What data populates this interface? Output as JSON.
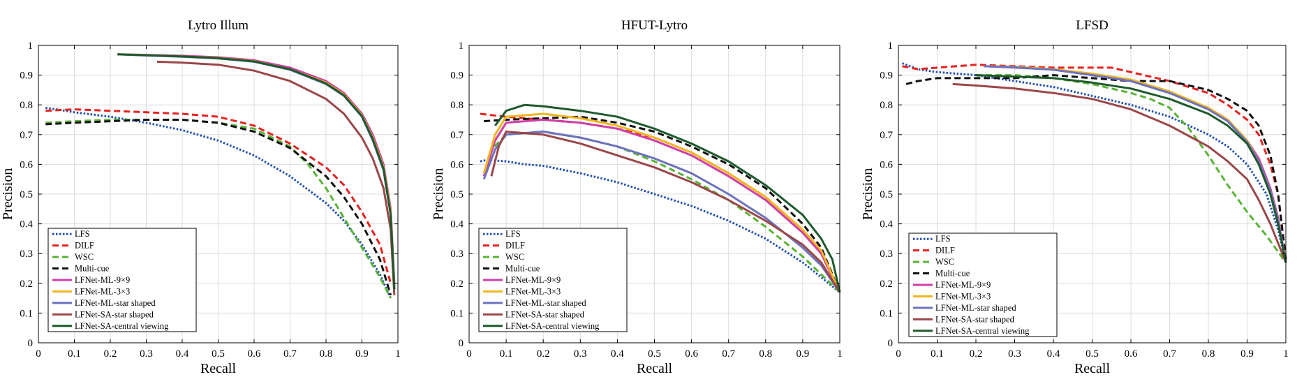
{
  "chart_data": [
    {
      "type": "line",
      "title": "Lytro Illum",
      "xlabel": "Recall",
      "ylabel": "Precision",
      "xlim": [
        0,
        1
      ],
      "ylim": [
        0,
        1
      ],
      "xticks": [
        "0",
        "0.1",
        "0.2",
        "0.3",
        "0.4",
        "0.5",
        "0.6",
        "0.7",
        "0.8",
        "0.9",
        "1"
      ],
      "yticks": [
        "0",
        "0.1",
        "0.2",
        "0.3",
        "0.4",
        "0.5",
        "0.6",
        "0.7",
        "0.8",
        "0.9",
        "1"
      ],
      "grid": true,
      "legend_position": "bottom-left",
      "series": [
        {
          "name": "LFS",
          "color": "#1f4fb4",
          "dash": "dotted",
          "x": [
            0.02,
            0.05,
            0.1,
            0.2,
            0.3,
            0.4,
            0.5,
            0.6,
            0.7,
            0.8,
            0.85,
            0.9,
            0.95,
            0.98
          ],
          "y": [
            0.79,
            0.785,
            0.775,
            0.76,
            0.74,
            0.715,
            0.68,
            0.63,
            0.56,
            0.47,
            0.41,
            0.33,
            0.23,
            0.15
          ]
        },
        {
          "name": "DILF",
          "color": "#e8211e",
          "dash": "dashed",
          "x": [
            0.02,
            0.1,
            0.2,
            0.3,
            0.4,
            0.5,
            0.6,
            0.7,
            0.8,
            0.85,
            0.9,
            0.95,
            0.98
          ],
          "y": [
            0.78,
            0.785,
            0.78,
            0.775,
            0.77,
            0.76,
            0.73,
            0.67,
            0.59,
            0.53,
            0.44,
            0.33,
            0.2
          ]
        },
        {
          "name": "WSC",
          "color": "#59b336",
          "dash": "dashed",
          "x": [
            0.02,
            0.1,
            0.2,
            0.3,
            0.4,
            0.5,
            0.6,
            0.7,
            0.75,
            0.8,
            0.85,
            0.9,
            0.95,
            0.98
          ],
          "y": [
            0.74,
            0.745,
            0.75,
            0.75,
            0.75,
            0.74,
            0.72,
            0.66,
            0.6,
            0.52,
            0.42,
            0.32,
            0.22,
            0.15
          ]
        },
        {
          "name": "Multi-cue",
          "color": "#111111",
          "dash": "dashed",
          "x": [
            0.02,
            0.1,
            0.2,
            0.3,
            0.4,
            0.5,
            0.6,
            0.7,
            0.8,
            0.85,
            0.9,
            0.95,
            0.98
          ],
          "y": [
            0.735,
            0.74,
            0.745,
            0.75,
            0.75,
            0.74,
            0.71,
            0.655,
            0.56,
            0.49,
            0.4,
            0.28,
            0.16
          ]
        },
        {
          "name": "LFNet-ML-9×9",
          "color": "#cf3fa6",
          "dash": "solid",
          "x": [
            0.22,
            0.3,
            0.4,
            0.5,
            0.6,
            0.7,
            0.8,
            0.85,
            0.9,
            0.93,
            0.96,
            0.98,
            0.99
          ],
          "y": [
            0.97,
            0.968,
            0.965,
            0.96,
            0.95,
            0.925,
            0.88,
            0.84,
            0.77,
            0.7,
            0.6,
            0.45,
            0.2
          ]
        },
        {
          "name": "LFNet-ML-3×3",
          "color": "#f2b61e",
          "dash": "solid",
          "x": [
            0.22,
            0.3,
            0.4,
            0.5,
            0.6,
            0.7,
            0.8,
            0.85,
            0.9,
            0.93,
            0.96,
            0.98,
            0.99
          ],
          "y": [
            0.97,
            0.967,
            0.963,
            0.958,
            0.947,
            0.92,
            0.875,
            0.835,
            0.765,
            0.69,
            0.59,
            0.44,
            0.19
          ]
        },
        {
          "name": "LFNet-ML-star shaped",
          "color": "#6c72bd",
          "dash": "solid",
          "x": [
            0.22,
            0.3,
            0.4,
            0.5,
            0.6,
            0.7,
            0.8,
            0.85,
            0.9,
            0.93,
            0.96,
            0.98,
            0.99
          ],
          "y": [
            0.97,
            0.966,
            0.962,
            0.956,
            0.945,
            0.918,
            0.87,
            0.83,
            0.76,
            0.68,
            0.58,
            0.43,
            0.18
          ]
        },
        {
          "name": "LFNet-SA-star shaped",
          "color": "#9b4749",
          "dash": "solid",
          "x": [
            0.33,
            0.4,
            0.5,
            0.6,
            0.7,
            0.8,
            0.85,
            0.9,
            0.93,
            0.96,
            0.98,
            0.99
          ],
          "y": [
            0.945,
            0.942,
            0.935,
            0.915,
            0.88,
            0.82,
            0.77,
            0.69,
            0.62,
            0.52,
            0.38,
            0.16
          ]
        },
        {
          "name": "LFNet-SA-central viewing",
          "color": "#1e5a2c",
          "dash": "solid",
          "x": [
            0.22,
            0.3,
            0.4,
            0.5,
            0.6,
            0.7,
            0.8,
            0.85,
            0.9,
            0.93,
            0.96,
            0.98,
            0.99
          ],
          "y": [
            0.97,
            0.967,
            0.963,
            0.957,
            0.946,
            0.92,
            0.872,
            0.832,
            0.762,
            0.685,
            0.585,
            0.43,
            0.18
          ]
        }
      ]
    },
    {
      "type": "line",
      "title": "HFUT-Lytro",
      "xlabel": "Recall",
      "ylabel": "Precision",
      "xlim": [
        0,
        1
      ],
      "ylim": [
        0,
        1
      ],
      "xticks": [
        "0",
        "0.1",
        "0.2",
        "0.3",
        "0.4",
        "0.5",
        "0.6",
        "0.7",
        "0.8",
        "0.9",
        "1"
      ],
      "yticks": [
        "0",
        "0.1",
        "0.2",
        "0.3",
        "0.4",
        "0.5",
        "0.6",
        "0.7",
        "0.8",
        "0.9",
        "1"
      ],
      "grid": true,
      "legend_position": "bottom-left",
      "series": [
        {
          "name": "LFS",
          "color": "#1f4fb4",
          "dash": "dotted",
          "x": [
            0.03,
            0.05,
            0.1,
            0.15,
            0.2,
            0.3,
            0.4,
            0.5,
            0.6,
            0.7,
            0.8,
            0.9,
            0.95,
            1.0
          ],
          "y": [
            0.61,
            0.615,
            0.61,
            0.6,
            0.595,
            0.57,
            0.54,
            0.5,
            0.46,
            0.41,
            0.35,
            0.27,
            0.22,
            0.17
          ]
        },
        {
          "name": "DILF",
          "color": "#e8211e",
          "dash": "dashed",
          "x": [
            0.03,
            0.1,
            0.2,
            0.3,
            0.4,
            0.5,
            0.6,
            0.7,
            0.8,
            0.9,
            0.95,
            1.0
          ],
          "y": [
            0.77,
            0.76,
            0.75,
            0.74,
            0.72,
            0.69,
            0.64,
            0.57,
            0.49,
            0.38,
            0.3,
            0.17
          ]
        },
        {
          "name": "WSC",
          "color": "#59b336",
          "dash": "dashed",
          "x": [
            0.04,
            0.06,
            0.1,
            0.2,
            0.3,
            0.4,
            0.5,
            0.6,
            0.7,
            0.8,
            0.9,
            1.0
          ],
          "y": [
            0.57,
            0.65,
            0.7,
            0.71,
            0.69,
            0.66,
            0.61,
            0.55,
            0.48,
            0.39,
            0.29,
            0.17
          ]
        },
        {
          "name": "Multi-cue",
          "color": "#111111",
          "dash": "dashed",
          "x": [
            0.04,
            0.1,
            0.2,
            0.3,
            0.4,
            0.5,
            0.6,
            0.7,
            0.8,
            0.9,
            0.95,
            1.0
          ],
          "y": [
            0.745,
            0.75,
            0.755,
            0.76,
            0.74,
            0.71,
            0.66,
            0.6,
            0.52,
            0.4,
            0.32,
            0.17
          ]
        },
        {
          "name": "LFNet-ML-9×9",
          "color": "#cf3fa6",
          "dash": "solid",
          "x": [
            0.04,
            0.07,
            0.1,
            0.2,
            0.3,
            0.4,
            0.5,
            0.6,
            0.7,
            0.8,
            0.9,
            0.95,
            1.0
          ],
          "y": [
            0.56,
            0.68,
            0.74,
            0.75,
            0.74,
            0.72,
            0.68,
            0.63,
            0.56,
            0.48,
            0.37,
            0.3,
            0.17
          ]
        },
        {
          "name": "LFNet-ML-3×3",
          "color": "#f2b61e",
          "dash": "solid",
          "x": [
            0.04,
            0.07,
            0.1,
            0.2,
            0.3,
            0.4,
            0.5,
            0.6,
            0.7,
            0.8,
            0.9,
            0.95,
            1.0
          ],
          "y": [
            0.57,
            0.7,
            0.76,
            0.77,
            0.755,
            0.73,
            0.69,
            0.64,
            0.57,
            0.49,
            0.38,
            0.31,
            0.17
          ]
        },
        {
          "name": "LFNet-ML-star shaped",
          "color": "#6c72bd",
          "dash": "solid",
          "x": [
            0.04,
            0.07,
            0.1,
            0.2,
            0.3,
            0.4,
            0.5,
            0.6,
            0.7,
            0.8,
            0.9,
            0.95,
            1.0
          ],
          "y": [
            0.55,
            0.65,
            0.7,
            0.71,
            0.69,
            0.66,
            0.62,
            0.57,
            0.5,
            0.42,
            0.32,
            0.26,
            0.17
          ]
        },
        {
          "name": "LFNet-SA-star shaped",
          "color": "#9b4749",
          "dash": "solid",
          "x": [
            0.06,
            0.08,
            0.1,
            0.2,
            0.3,
            0.4,
            0.5,
            0.6,
            0.7,
            0.8,
            0.9,
            0.95,
            1.0
          ],
          "y": [
            0.56,
            0.66,
            0.71,
            0.7,
            0.67,
            0.63,
            0.59,
            0.54,
            0.48,
            0.41,
            0.33,
            0.27,
            0.17
          ]
        },
        {
          "name": "LFNet-SA-central viewing",
          "color": "#1e5a2c",
          "dash": "solid",
          "x": [
            0.07,
            0.1,
            0.15,
            0.2,
            0.3,
            0.4,
            0.5,
            0.6,
            0.7,
            0.8,
            0.9,
            0.95,
            0.98,
            1.0
          ],
          "y": [
            0.73,
            0.78,
            0.8,
            0.795,
            0.78,
            0.76,
            0.72,
            0.67,
            0.61,
            0.53,
            0.43,
            0.35,
            0.28,
            0.17
          ]
        }
      ]
    },
    {
      "type": "line",
      "title": "LFSD",
      "xlabel": "Recall",
      "ylabel": "Precision",
      "xlim": [
        0,
        1
      ],
      "ylim": [
        0,
        1
      ],
      "xticks": [
        "0",
        "0.1",
        "0.2",
        "0.3",
        "0.4",
        "0.5",
        "0.6",
        "0.7",
        "0.8",
        "0.9",
        "1"
      ],
      "yticks": [
        "0",
        "0.1",
        "0.2",
        "0.3",
        "0.4",
        "0.5",
        "0.6",
        "0.7",
        "0.8",
        "0.9",
        "1"
      ],
      "grid": true,
      "legend_position": "bottom-left",
      "series": [
        {
          "name": "LFS",
          "color": "#1f4fb4",
          "dash": "dotted",
          "x": [
            0.01,
            0.05,
            0.1,
            0.2,
            0.3,
            0.4,
            0.5,
            0.6,
            0.7,
            0.8,
            0.85,
            0.9,
            0.95,
            0.98,
            1.0
          ],
          "y": [
            0.94,
            0.92,
            0.91,
            0.9,
            0.88,
            0.86,
            0.83,
            0.8,
            0.76,
            0.7,
            0.66,
            0.6,
            0.5,
            0.38,
            0.27
          ]
        },
        {
          "name": "DILF",
          "color": "#e8211e",
          "dash": "dashed",
          "x": [
            0.01,
            0.05,
            0.1,
            0.2,
            0.3,
            0.4,
            0.5,
            0.55,
            0.6,
            0.7,
            0.8,
            0.85,
            0.9,
            0.93,
            0.96,
            0.98,
            1.0
          ],
          "y": [
            0.93,
            0.92,
            0.925,
            0.935,
            0.93,
            0.925,
            0.925,
            0.925,
            0.91,
            0.88,
            0.84,
            0.8,
            0.75,
            0.7,
            0.6,
            0.5,
            0.28
          ]
        },
        {
          "name": "WSC",
          "color": "#59b336",
          "dash": "dashed",
          "x": [
            0.2,
            0.3,
            0.4,
            0.5,
            0.6,
            0.65,
            0.7,
            0.75,
            0.8,
            0.85,
            0.9,
            0.95,
            1.0
          ],
          "y": [
            0.9,
            0.9,
            0.89,
            0.87,
            0.84,
            0.82,
            0.79,
            0.72,
            0.63,
            0.53,
            0.44,
            0.36,
            0.27
          ]
        },
        {
          "name": "Multi-cue",
          "color": "#111111",
          "dash": "dashed",
          "x": [
            0.02,
            0.05,
            0.1,
            0.2,
            0.3,
            0.4,
            0.5,
            0.6,
            0.7,
            0.8,
            0.85,
            0.9,
            0.93,
            0.96,
            0.98,
            1.0
          ],
          "y": [
            0.87,
            0.88,
            0.89,
            0.89,
            0.89,
            0.9,
            0.89,
            0.88,
            0.88,
            0.85,
            0.82,
            0.78,
            0.73,
            0.63,
            0.5,
            0.28
          ]
        },
        {
          "name": "LFNet-ML-9×9",
          "color": "#cf3fa6",
          "dash": "solid",
          "x": [
            0.22,
            0.3,
            0.4,
            0.5,
            0.6,
            0.7,
            0.8,
            0.85,
            0.9,
            0.93,
            0.96,
            0.98,
            1.0
          ],
          "y": [
            0.93,
            0.925,
            0.92,
            0.9,
            0.88,
            0.84,
            0.79,
            0.75,
            0.68,
            0.62,
            0.52,
            0.42,
            0.27
          ]
        },
        {
          "name": "LFNet-ML-3×3",
          "color": "#f2b61e",
          "dash": "solid",
          "x": [
            0.22,
            0.3,
            0.4,
            0.5,
            0.6,
            0.7,
            0.8,
            0.85,
            0.9,
            0.93,
            0.96,
            0.98,
            1.0
          ],
          "y": [
            0.93,
            0.928,
            0.92,
            0.905,
            0.885,
            0.845,
            0.79,
            0.75,
            0.68,
            0.61,
            0.51,
            0.41,
            0.27
          ]
        },
        {
          "name": "LFNet-ML-star shaped",
          "color": "#6c72bd",
          "dash": "solid",
          "x": [
            0.22,
            0.3,
            0.4,
            0.5,
            0.6,
            0.7,
            0.8,
            0.85,
            0.9,
            0.93,
            0.96,
            0.98,
            1.0
          ],
          "y": [
            0.93,
            0.926,
            0.918,
            0.9,
            0.88,
            0.84,
            0.785,
            0.745,
            0.675,
            0.61,
            0.51,
            0.41,
            0.27
          ]
        },
        {
          "name": "LFNet-SA-star shaped",
          "color": "#9b4749",
          "dash": "solid",
          "x": [
            0.14,
            0.2,
            0.3,
            0.4,
            0.5,
            0.6,
            0.7,
            0.8,
            0.85,
            0.9,
            0.93,
            0.96,
            1.0
          ],
          "y": [
            0.87,
            0.865,
            0.855,
            0.84,
            0.82,
            0.785,
            0.73,
            0.66,
            0.61,
            0.55,
            0.48,
            0.4,
            0.27
          ]
        },
        {
          "name": "LFNet-SA-central viewing",
          "color": "#1e5a2c",
          "dash": "solid",
          "x": [
            0.2,
            0.3,
            0.4,
            0.5,
            0.6,
            0.7,
            0.8,
            0.85,
            0.9,
            0.93,
            0.96,
            0.98,
            1.0
          ],
          "y": [
            0.9,
            0.895,
            0.89,
            0.875,
            0.855,
            0.82,
            0.77,
            0.73,
            0.67,
            0.6,
            0.5,
            0.4,
            0.27
          ]
        }
      ]
    }
  ]
}
